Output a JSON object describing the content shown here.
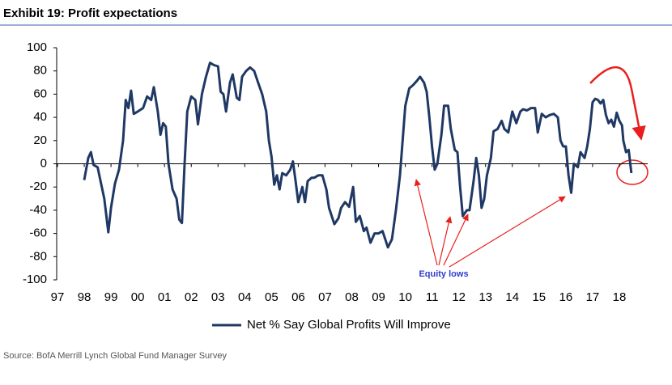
{
  "chart_data": {
    "type": "line",
    "title": "Exhibit 19: Profit expectations",
    "source": "Source:  BofA Merrill Lynch Global Fund Manager Survey",
    "annotation": "Equity lows",
    "xlim": [
      1997,
      2019
    ],
    "xticks": [
      {
        "value": 1997,
        "label": "97"
      },
      {
        "value": 1998,
        "label": "98"
      },
      {
        "value": 1999,
        "label": "99"
      },
      {
        "value": 2000,
        "label": "00"
      },
      {
        "value": 2001,
        "label": "01"
      },
      {
        "value": 2002,
        "label": "02"
      },
      {
        "value": 2003,
        "label": "03"
      },
      {
        "value": 2004,
        "label": "04"
      },
      {
        "value": 2005,
        "label": "05"
      },
      {
        "value": 2006,
        "label": "06"
      },
      {
        "value": 2007,
        "label": "07"
      },
      {
        "value": 2008,
        "label": "08"
      },
      {
        "value": 2009,
        "label": "09"
      },
      {
        "value": 2010,
        "label": "10"
      },
      {
        "value": 2011,
        "label": "11"
      },
      {
        "value": 2012,
        "label": "12"
      },
      {
        "value": 2013,
        "label": "13"
      },
      {
        "value": 2014,
        "label": "14"
      },
      {
        "value": 2015,
        "label": "15"
      },
      {
        "value": 2016,
        "label": "16"
      },
      {
        "value": 2017,
        "label": "17"
      },
      {
        "value": 2018,
        "label": "18"
      }
    ],
    "ylim": [
      -100,
      100
    ],
    "yticks": [
      -100,
      -80,
      -60,
      -40,
      -20,
      0,
      20,
      40,
      60,
      80,
      100
    ],
    "legend": "bottom",
    "x": [
      1998.0,
      1998.15,
      1998.25,
      1998.35,
      1998.5,
      1998.6,
      1998.75,
      1998.9,
      1999.0,
      1999.15,
      1999.3,
      1999.45,
      1999.55,
      1999.65,
      1999.75,
      1999.85,
      2000.0,
      2000.2,
      2000.35,
      2000.5,
      2000.6,
      2000.75,
      2000.85,
      2000.95,
      2001.05,
      2001.15,
      2001.3,
      2001.45,
      2001.55,
      2001.65,
      2001.75,
      2001.85,
      2002.0,
      2002.15,
      2002.25,
      2002.4,
      2002.55,
      2002.7,
      2002.85,
      2003.0,
      2003.1,
      2003.2,
      2003.3,
      2003.45,
      2003.55,
      2003.7,
      2003.8,
      2003.9,
      2004.05,
      2004.2,
      2004.35,
      2004.5,
      2004.65,
      2004.8,
      2004.9,
      2005.0,
      2005.1,
      2005.2,
      2005.3,
      2005.4,
      2005.55,
      2005.7,
      2005.8,
      2005.9,
      2006.0,
      2006.15,
      2006.25,
      2006.35,
      2006.5,
      2006.6,
      2006.75,
      2006.9,
      2007.05,
      2007.15,
      2007.35,
      2007.5,
      2007.6,
      2007.75,
      2007.9,
      2008.05,
      2008.15,
      2008.3,
      2008.45,
      2008.55,
      2008.7,
      2008.85,
      2009.0,
      2009.15,
      2009.35,
      2009.5,
      2009.65,
      2009.8,
      2009.9,
      2010.0,
      2010.15,
      2010.3,
      2010.45,
      2010.55,
      2010.7,
      2010.8,
      2010.9,
      2011.0,
      2011.1,
      2011.2,
      2011.35,
      2011.45,
      2011.6,
      2011.7,
      2011.85,
      2011.95,
      2012.05,
      2012.15,
      2012.3,
      2012.4,
      2012.55,
      2012.65,
      2012.75,
      2012.85,
      2012.95,
      2013.05,
      2013.2,
      2013.3,
      2013.45,
      2013.6,
      2013.7,
      2013.85,
      2014.0,
      2014.15,
      2014.3,
      2014.4,
      2014.55,
      2014.7,
      2014.85,
      2014.95,
      2015.1,
      2015.25,
      2015.4,
      2015.55,
      2015.7,
      2015.8,
      2015.9,
      2016.0,
      2016.1,
      2016.2,
      2016.3,
      2016.45,
      2016.55,
      2016.7,
      2016.8,
      2016.9,
      2017.0,
      2017.1,
      2017.2,
      2017.3,
      2017.4,
      2017.5,
      2017.6,
      2017.7,
      2017.8,
      2017.9,
      2018.0,
      2018.1,
      2018.15,
      2018.25,
      2018.35,
      2018.45
    ],
    "series": [
      {
        "name": "Net % Say Global Profits Will Improve",
        "color": "#1f3864",
        "values": [
          -14,
          5,
          10,
          -1,
          -3,
          -14,
          -30,
          -59,
          -38,
          -17,
          -5,
          20,
          55,
          48,
          63,
          43,
          45,
          48,
          58,
          55,
          66,
          45,
          25,
          35,
          32,
          0,
          -22,
          -30,
          -48,
          -51,
          0,
          45,
          58,
          55,
          34,
          60,
          75,
          87,
          85,
          84,
          62,
          60,
          45,
          70,
          77,
          57,
          55,
          75,
          80,
          83,
          80,
          70,
          60,
          45,
          20,
          6,
          -18,
          -10,
          -22,
          -8,
          -10,
          -5,
          2,
          -15,
          -33,
          -20,
          -33,
          -15,
          -12,
          -12,
          -10,
          -10,
          -22,
          -38,
          -52,
          -47,
          -38,
          -33,
          -37,
          -20,
          -50,
          -45,
          -58,
          -55,
          -68,
          -60,
          -60,
          -58,
          -72,
          -65,
          -40,
          -10,
          20,
          50,
          65,
          68,
          72,
          75,
          70,
          62,
          40,
          15,
          -5,
          0,
          25,
          50,
          50,
          30,
          12,
          10,
          -20,
          -45,
          -40,
          -40,
          -15,
          5,
          -10,
          -38,
          -30,
          -10,
          5,
          28,
          30,
          37,
          30,
          27,
          45,
          35,
          45,
          47,
          46,
          48,
          48,
          27,
          43,
          40,
          42,
          43,
          40,
          20,
          15,
          15,
          -10,
          -25,
          0,
          -3,
          10,
          5,
          15,
          30,
          53,
          56,
          55,
          52,
          55,
          42,
          35,
          38,
          32,
          44,
          37,
          33,
          20,
          10,
          12,
          -8
        ]
      }
    ]
  }
}
